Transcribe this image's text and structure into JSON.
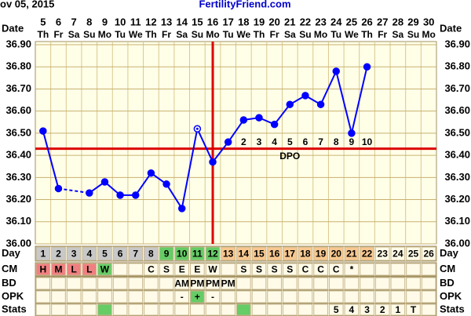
{
  "header": {
    "date": "ov 05, 2015",
    "site": "FertilityFriend.com"
  },
  "chart_data": {
    "type": "line",
    "date_label": "Date",
    "categories": [
      "5",
      "6",
      "7",
      "8",
      "9",
      "10",
      "11",
      "12",
      "13",
      "14",
      "15",
      "16",
      "17",
      "18",
      "19",
      "20",
      "21",
      "22",
      "23",
      "24",
      "25",
      "26",
      "27",
      "28",
      "29",
      "30"
    ],
    "weekdays": [
      "Th",
      "Fr",
      "Sa",
      "Su",
      "Mo",
      "Tu",
      "We",
      "Th",
      "Fr",
      "Sa",
      "Su",
      "Mo",
      "Tu",
      "We",
      "Th",
      "Fr",
      "Sa",
      "Su",
      "Mo",
      "Tu",
      "We",
      "Th",
      "Fr",
      "Sa",
      "Su",
      "Mo"
    ],
    "values": [
      36.51,
      36.25,
      null,
      36.23,
      36.28,
      36.22,
      36.22,
      36.32,
      36.27,
      36.16,
      36.52,
      36.37,
      36.46,
      36.56,
      36.57,
      36.54,
      36.63,
      36.67,
      36.63,
      36.78,
      36.5,
      36.8,
      null,
      null,
      null,
      null
    ],
    "color": "#0000ff",
    "hollow_points": [
      10
    ],
    "ylim": [
      36.0,
      36.9
    ],
    "yticks": [
      {
        "value": 36.0,
        "label": "36.00"
      },
      {
        "value": 36.1,
        "label": "36.10"
      },
      {
        "value": 36.2,
        "label": "36.20"
      },
      {
        "value": 36.3,
        "label": "36.30"
      },
      {
        "value": 36.4,
        "label": "36.40"
      },
      {
        "value": 36.5,
        "label": "36.50"
      },
      {
        "value": 36.6,
        "label": "36.60"
      },
      {
        "value": 36.7,
        "label": "36.70"
      },
      {
        "value": 36.8,
        "label": "36.80"
      },
      {
        "value": 36.9,
        "label": "36.90"
      }
    ],
    "grid": true,
    "coverline": 36.43,
    "ovulation_day": 12,
    "line_color": "#dd0000",
    "dpo": [
      null,
      null,
      null,
      null,
      null,
      null,
      null,
      null,
      null,
      null,
      null,
      null,
      1,
      2,
      3,
      4,
      5,
      6,
      7,
      8,
      9,
      10,
      null,
      null,
      null,
      null
    ],
    "dpo_label": "DPO"
  },
  "table": {
    "rows": [
      {
        "label": "Day",
        "cells": [
          1,
          2,
          3,
          4,
          5,
          6,
          7,
          8,
          9,
          10,
          11,
          12,
          13,
          14,
          15,
          16,
          17,
          18,
          19,
          20,
          21,
          22,
          23,
          24,
          25,
          26
        ],
        "colors": [
          "#c8c8c8",
          "#c8c8c8",
          "#c8c8c8",
          "#c8c8c8",
          "#c8c8c8",
          "#c8c8c8",
          "#c8c8c8",
          "#c8c8c8",
          "#66cc66",
          "#66cc66",
          "#66cc66",
          "#66cc66",
          "#f8c890",
          "#f8c890",
          "#f8c890",
          "#f8c890",
          "#f8c890",
          "#f8c890",
          "#f8c890",
          "#f8c890",
          "#f8c890",
          "#f8c890",
          null,
          null,
          null,
          null
        ]
      },
      {
        "label": "CM",
        "cells": [
          "H",
          "M",
          "L",
          "L",
          "W",
          null,
          null,
          "C",
          "S",
          "E",
          "E",
          "W",
          null,
          "S",
          "S",
          "S",
          "S",
          "C",
          "C",
          "C",
          "*",
          null,
          null,
          null,
          null,
          null
        ],
        "colors": [
          "#f08080",
          "#f08080",
          "#f08080",
          "#f08080",
          "#66cc66",
          null,
          null,
          null,
          null,
          null,
          null,
          null,
          null,
          null,
          null,
          null,
          null,
          null,
          null,
          null,
          null,
          null,
          null,
          null,
          null,
          null
        ]
      },
      {
        "label": "BD",
        "cells": [
          null,
          null,
          null,
          null,
          null,
          null,
          null,
          null,
          null,
          "AM",
          "PM",
          "PM",
          "PM",
          null,
          null,
          null,
          null,
          null,
          null,
          null,
          null,
          null,
          null,
          null,
          null,
          null
        ],
        "colors": [
          null,
          null,
          null,
          null,
          null,
          null,
          null,
          null,
          null,
          null,
          null,
          null,
          null,
          null,
          null,
          null,
          null,
          null,
          null,
          null,
          null,
          null,
          null,
          null,
          null,
          null
        ]
      },
      {
        "label": "OPK",
        "cells": [
          null,
          null,
          null,
          null,
          null,
          null,
          null,
          null,
          null,
          "-",
          "+",
          "-",
          null,
          null,
          null,
          null,
          null,
          null,
          null,
          null,
          null,
          null,
          null,
          null,
          null,
          null
        ],
        "colors": [
          null,
          null,
          null,
          null,
          null,
          null,
          null,
          null,
          null,
          null,
          "#66cc66",
          null,
          null,
          null,
          null,
          null,
          null,
          null,
          null,
          null,
          null,
          null,
          null,
          null,
          null,
          null
        ]
      },
      {
        "label": "Stats",
        "cells": [
          null,
          null,
          null,
          null,
          null,
          null,
          null,
          null,
          null,
          null,
          null,
          null,
          null,
          null,
          null,
          null,
          null,
          null,
          null,
          "5",
          "4",
          "3",
          "2",
          "1",
          "T",
          null
        ],
        "colors": [
          null,
          null,
          null,
          null,
          "#66cc66",
          null,
          null,
          null,
          null,
          null,
          null,
          null,
          null,
          "#66cc66",
          null,
          null,
          null,
          null,
          null,
          null,
          null,
          null,
          null,
          null,
          null,
          null
        ]
      }
    ]
  }
}
